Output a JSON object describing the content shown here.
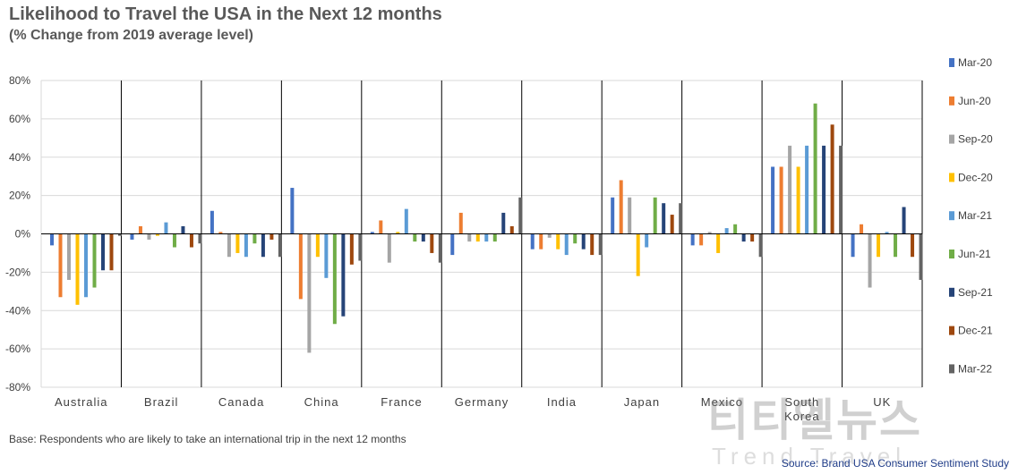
{
  "title": "Likelihood to Travel the USA in the Next 12 months",
  "subtitle": "(% Change from 2019 average level)",
  "base_note": "Base: Respondents who are likely to take an international trip in the next 12 months",
  "source_note": "Source: Brand USA Consumer Sentiment Study",
  "watermark": "티티엘뉴스",
  "watermark_sub": "Trend Travel",
  "chart_data": {
    "type": "bar",
    "ylim": [
      -80,
      80
    ],
    "ytick_step": 20,
    "ytick_format": "percent",
    "grid": true,
    "legend_position": "right",
    "categories": [
      "Australia",
      "Brazil",
      "Canada",
      "China",
      "France",
      "Germany",
      "India",
      "Japan",
      "Mexico",
      "South Korea",
      "UK"
    ],
    "series": [
      {
        "name": "Mar-20",
        "color": "#4472c4",
        "values": [
          -6,
          -3,
          12,
          24,
          1,
          -11,
          -8,
          19,
          -6,
          35,
          -12
        ]
      },
      {
        "name": "Jun-20",
        "color": "#ed7d31",
        "values": [
          -33,
          4,
          1,
          -34,
          7,
          11,
          -8,
          28,
          -6,
          35,
          5
        ]
      },
      {
        "name": "Sep-20",
        "color": "#a5a5a5",
        "values": [
          -24,
          -3,
          -12,
          -62,
          -15,
          -4,
          -2,
          19,
          1,
          46,
          -28
        ]
      },
      {
        "name": "Dec-20",
        "color": "#ffc000",
        "values": [
          -37,
          -1,
          -10,
          -12,
          1,
          -4,
          -8,
          -22,
          -10,
          35,
          -12
        ]
      },
      {
        "name": "Mar-21",
        "color": "#5b9bd5",
        "values": [
          -33,
          6,
          -12,
          -23,
          13,
          -4,
          -11,
          -7,
          3,
          46,
          1
        ]
      },
      {
        "name": "Jun-21",
        "color": "#70ad47",
        "values": [
          -28,
          -7,
          -5,
          -47,
          -4,
          -4,
          -5,
          19,
          5,
          68,
          -12
        ]
      },
      {
        "name": "Sep-21",
        "color": "#264478",
        "values": [
          -19,
          4,
          -12,
          -43,
          -4,
          11,
          -8,
          16,
          -4,
          46,
          14
        ]
      },
      {
        "name": "Dec-21",
        "color": "#9e480e",
        "values": [
          -19,
          -7,
          -3,
          -16,
          -10,
          4,
          -11,
          10,
          -4,
          57,
          -12
        ]
      },
      {
        "name": "Mar-22",
        "color": "#636363",
        "values": [
          -1,
          -5,
          -12,
          -14,
          -15,
          19,
          -11,
          16,
          -12,
          46,
          -24
        ]
      }
    ]
  }
}
